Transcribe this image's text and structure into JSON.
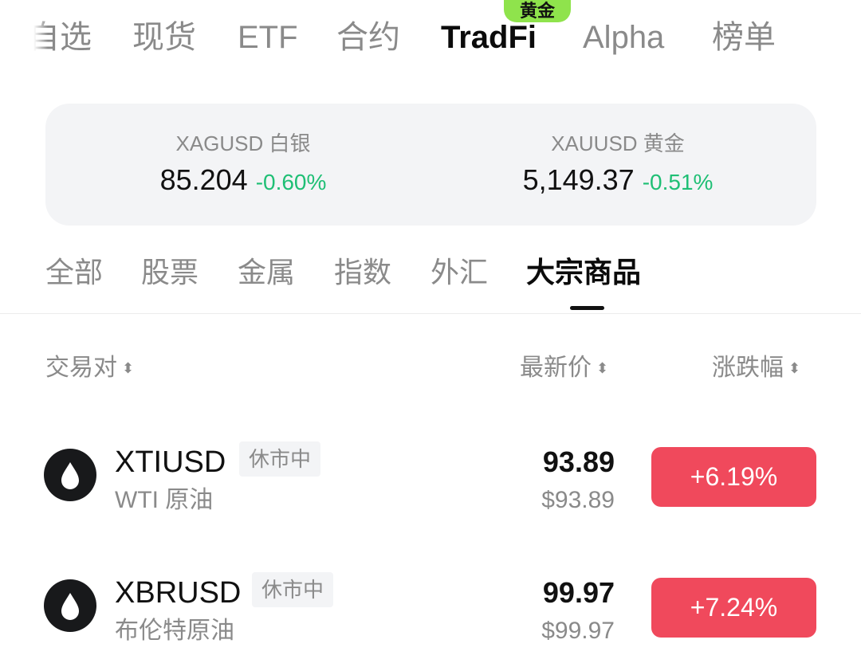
{
  "top_tabs": [
    {
      "label": "自选"
    },
    {
      "label": "现货"
    },
    {
      "label": "ETF"
    },
    {
      "label": "合约"
    },
    {
      "label": "TradFi",
      "active": true,
      "badge": "黄金"
    },
    {
      "label": "Alpha"
    },
    {
      "label": "榜单"
    }
  ],
  "featured": [
    {
      "label": "XAGUSD 白银",
      "price": "85.204",
      "change": "-0.60%"
    },
    {
      "label": "XAUUSD 黄金",
      "price": "5,149.37",
      "change": "-0.51%"
    }
  ],
  "sub_tabs": [
    {
      "label": "全部"
    },
    {
      "label": "股票"
    },
    {
      "label": "金属"
    },
    {
      "label": "指数"
    },
    {
      "label": "外汇"
    },
    {
      "label": "大宗商品",
      "active": true
    }
  ],
  "table_header": {
    "pair": "交易对",
    "price": "最新价",
    "change": "涨跌幅",
    "sort_icon": "sort-icon"
  },
  "rows": [
    {
      "symbol": "XTIUSD",
      "status": "休市中",
      "name": "WTI 原油",
      "price": "93.89",
      "price_usd": "$93.89",
      "change": "+6.19%",
      "icon": "oil-drop-icon"
    },
    {
      "symbol": "XBRUSD",
      "status": "休市中",
      "name": "布伦特原油",
      "price": "99.97",
      "price_usd": "$99.97",
      "change": "+7.24%",
      "icon": "oil-drop-icon"
    }
  ],
  "colors": {
    "up": "#f0495c",
    "down": "#1fbf75",
    "badge": "#8fe34c"
  }
}
